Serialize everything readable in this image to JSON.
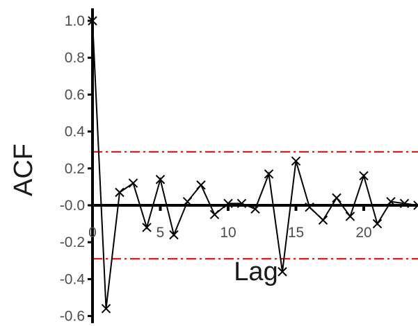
{
  "chart_data": {
    "type": "line",
    "title": "",
    "xlabel": "Lag",
    "ylabel": "ACF",
    "xlim": [
      0,
      24
    ],
    "ylim": [
      -0.6,
      1.0
    ],
    "x_ticks": [
      0,
      5,
      10,
      15,
      20
    ],
    "x_tick_labels": [
      "0",
      "5",
      "10",
      "15",
      "20"
    ],
    "y_ticks": [
      -0.6,
      -0.4,
      -0.2,
      0.0,
      0.2,
      0.4,
      0.6,
      0.8,
      1.0
    ],
    "y_tick_labels": [
      "-0.6",
      "-0.4",
      "-0.2",
      "-0.0",
      "0.2",
      "0.4",
      "0.6",
      "0.8",
      "1.0"
    ],
    "confidence_bounds": [
      0.29,
      -0.29
    ],
    "confidence_color": "#e31a1c",
    "line_color": "#000000",
    "marker": "x",
    "grid": false,
    "x": [
      0,
      1,
      2,
      3,
      4,
      5,
      6,
      7,
      8,
      9,
      10,
      11,
      12,
      13,
      14,
      15,
      16,
      17,
      18,
      19,
      20,
      21,
      22,
      23,
      24
    ],
    "values": [
      1.0,
      -0.56,
      0.07,
      0.12,
      -0.12,
      0.14,
      -0.16,
      0.02,
      0.11,
      -0.05,
      0.01,
      0.01,
      -0.02,
      0.17,
      -0.36,
      0.24,
      -0.01,
      -0.08,
      0.04,
      -0.06,
      0.16,
      -0.1,
      0.02,
      0.01,
      0.0
    ]
  }
}
